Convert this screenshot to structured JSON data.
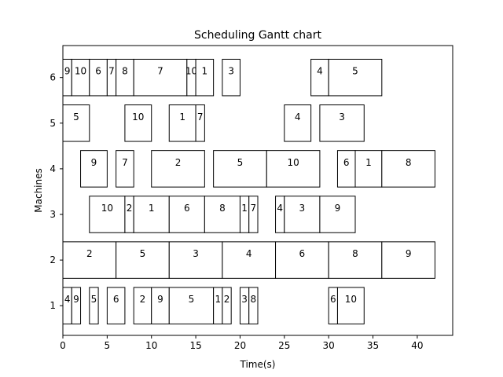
{
  "chart_data": {
    "type": "gantt",
    "title": "Scheduling Gantt chart",
    "xlabel": "Time(s)",
    "ylabel": "Machines",
    "xlim": [
      0,
      44
    ],
    "ylim": [
      0.35,
      6.7
    ],
    "xticks": [
      0,
      5,
      10,
      15,
      20,
      25,
      30,
      35,
      40
    ],
    "yticks": [
      1,
      2,
      3,
      4,
      5,
      6
    ],
    "grid": false,
    "bar_fill": "#ffffff",
    "bar_edge": "#000000",
    "machines": [
      {
        "machine": 1,
        "tasks": [
          {
            "job": "4",
            "start": 0,
            "end": 1
          },
          {
            "job": "9",
            "start": 1,
            "end": 2
          },
          {
            "job": "5",
            "start": 3,
            "end": 4
          },
          {
            "job": "6",
            "start": 5,
            "end": 7
          },
          {
            "job": "2",
            "start": 8,
            "end": 10
          },
          {
            "job": "9",
            "start": 10,
            "end": 12
          },
          {
            "job": "5",
            "start": 12,
            "end": 17
          },
          {
            "job": "1",
            "start": 17,
            "end": 18
          },
          {
            "job": "2",
            "start": 18,
            "end": 19
          },
          {
            "job": "3",
            "start": 20,
            "end": 21
          },
          {
            "job": "8",
            "start": 21,
            "end": 22
          },
          {
            "job": "6",
            "start": 30,
            "end": 31
          },
          {
            "job": "10",
            "start": 31,
            "end": 34
          }
        ]
      },
      {
        "machine": 2,
        "tasks": [
          {
            "job": "2",
            "start": 0,
            "end": 6
          },
          {
            "job": "5",
            "start": 6,
            "end": 12
          },
          {
            "job": "3",
            "start": 12,
            "end": 18
          },
          {
            "job": "4",
            "start": 18,
            "end": 24
          },
          {
            "job": "6",
            "start": 24,
            "end": 30
          },
          {
            "job": "8",
            "start": 30,
            "end": 36
          },
          {
            "job": "9",
            "start": 36,
            "end": 42
          }
        ]
      },
      {
        "machine": 3,
        "tasks": [
          {
            "job": "10",
            "start": 3,
            "end": 7
          },
          {
            "job": "2",
            "start": 7,
            "end": 8
          },
          {
            "job": "1",
            "start": 8,
            "end": 12
          },
          {
            "job": "6",
            "start": 12,
            "end": 16
          },
          {
            "job": "8",
            "start": 16,
            "end": 20
          },
          {
            "job": "1",
            "start": 20,
            "end": 21
          },
          {
            "job": "7",
            "start": 21,
            "end": 22
          },
          {
            "job": "4",
            "start": 24,
            "end": 25
          },
          {
            "job": "3",
            "start": 25,
            "end": 29
          },
          {
            "job": "9",
            "start": 29,
            "end": 33
          }
        ]
      },
      {
        "machine": 4,
        "tasks": [
          {
            "job": "9",
            "start": 2,
            "end": 5
          },
          {
            "job": "7",
            "start": 6,
            "end": 8
          },
          {
            "job": "2",
            "start": 10,
            "end": 16
          },
          {
            "job": "5",
            "start": 17,
            "end": 23
          },
          {
            "job": "10",
            "start": 23,
            "end": 29
          },
          {
            "job": "6",
            "start": 31,
            "end": 33
          },
          {
            "job": "1",
            "start": 33,
            "end": 36
          },
          {
            "job": "8",
            "start": 36,
            "end": 42
          }
        ]
      },
      {
        "machine": 5,
        "tasks": [
          {
            "job": "5",
            "start": 0,
            "end": 3
          },
          {
            "job": "10",
            "start": 7,
            "end": 10
          },
          {
            "job": "1",
            "start": 12,
            "end": 15
          },
          {
            "job": "7",
            "start": 15,
            "end": 16
          },
          {
            "job": "4",
            "start": 25,
            "end": 28
          },
          {
            "job": "3",
            "start": 29,
            "end": 34
          }
        ]
      },
      {
        "machine": 6,
        "tasks": [
          {
            "job": "9",
            "start": 0,
            "end": 1
          },
          {
            "job": "10",
            "start": 1,
            "end": 3
          },
          {
            "job": "6",
            "start": 3,
            "end": 5
          },
          {
            "job": "7",
            "start": 5,
            "end": 6
          },
          {
            "job": "8",
            "start": 6,
            "end": 8
          },
          {
            "job": "7",
            "start": 8,
            "end": 14
          },
          {
            "job": "10",
            "start": 14,
            "end": 15
          },
          {
            "job": "1",
            "start": 15,
            "end": 17
          },
          {
            "job": "3",
            "start": 18,
            "end": 20
          },
          {
            "job": "4",
            "start": 28,
            "end": 30
          },
          {
            "job": "5",
            "start": 30,
            "end": 36
          }
        ]
      }
    ]
  }
}
